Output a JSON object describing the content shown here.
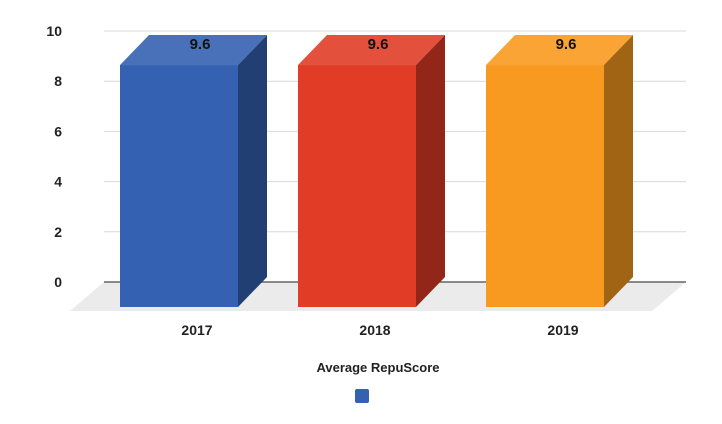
{
  "chart_data": {
    "type": "bar",
    "style": "3d-column",
    "categories": [
      "2017",
      "2018",
      "2019"
    ],
    "values": [
      9.6,
      9.6,
      9.6
    ],
    "data_labels": [
      "9.6",
      "9.6",
      "9.6"
    ],
    "bar_colors": [
      "#3561b2",
      "#e03c26",
      "#f89a1f"
    ],
    "ylim": [
      0,
      10
    ],
    "yticks": [
      0,
      2,
      4,
      6,
      8,
      10
    ],
    "grid": true,
    "legend": {
      "placement": "bottom",
      "title": "Average RepuScore",
      "swatch_color": "#3561b2"
    }
  }
}
